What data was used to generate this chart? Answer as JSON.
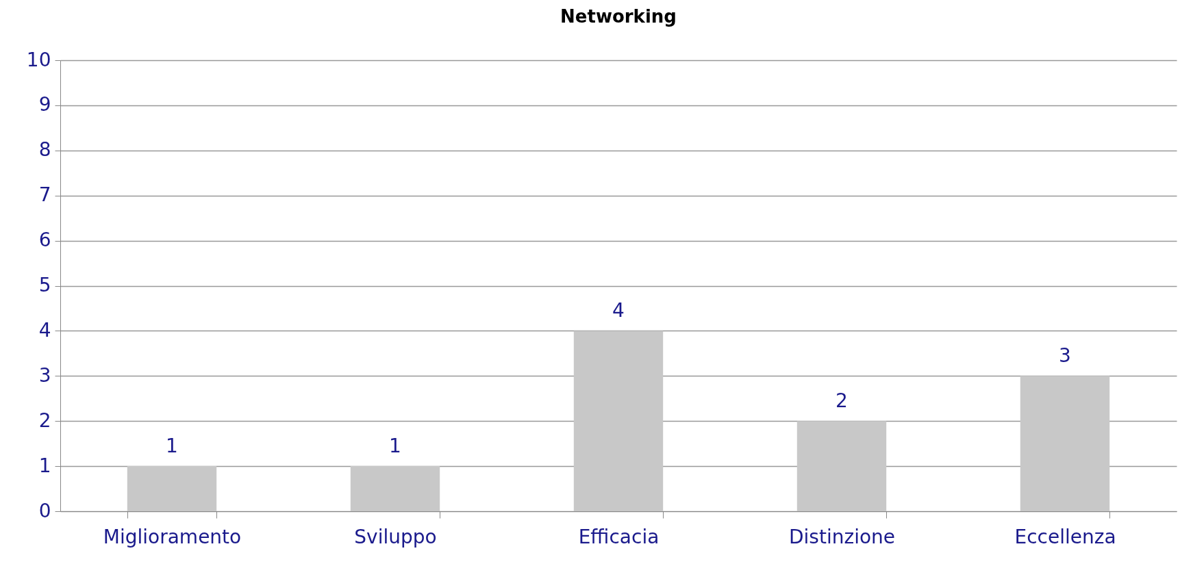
{
  "chart_data": {
    "type": "bar",
    "title": "Networking",
    "categories": [
      "Miglioramento",
      "Sviluppo",
      "Efficacia",
      "Distinzione",
      "Eccellenza"
    ],
    "values": [
      1,
      1,
      4,
      2,
      3
    ],
    "color": "#c8c8c8",
    "ylim": [
      0,
      10
    ],
    "yticks": [
      0,
      1,
      2,
      3,
      4,
      5,
      6,
      7,
      8,
      9,
      10
    ],
    "grid": "y",
    "data_labels": true
  }
}
